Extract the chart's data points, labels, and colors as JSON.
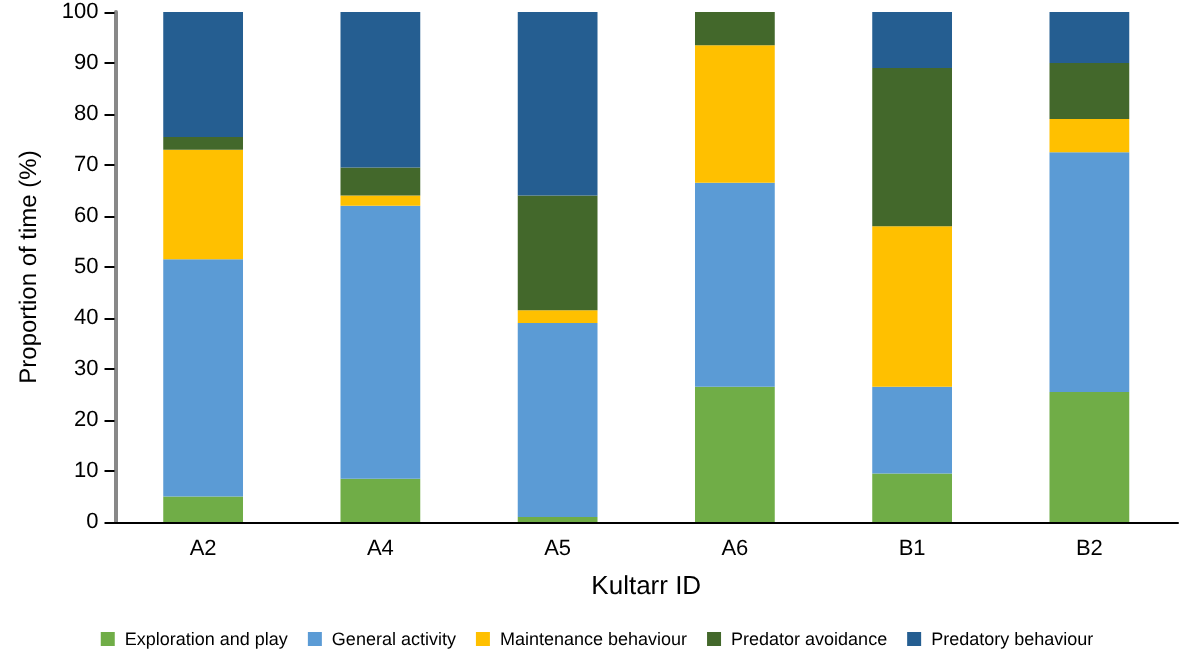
{
  "chart_data": {
    "type": "bar",
    "stacked": true,
    "xlabel": "Kultarr ID",
    "ylabel": "Proportion of time (%)",
    "categories": [
      "A2",
      "A4",
      "A5",
      "A6",
      "B1",
      "B2"
    ],
    "series": [
      {
        "name": "Exploration and play",
        "color": "#70ad47",
        "values": [
          5,
          8.5,
          1,
          26.5,
          9.5,
          25.5
        ]
      },
      {
        "name": "General activity",
        "color": "#5b9bd5",
        "values": [
          46.5,
          53.5,
          38,
          40,
          17,
          47
        ]
      },
      {
        "name": "Maintenance behaviour",
        "color": "#ffc000",
        "values": [
          21.5,
          2,
          2.5,
          27,
          31.5,
          6.5
        ]
      },
      {
        "name": "Predator avoidance",
        "color": "#43682b",
        "values": [
          2.5,
          5.5,
          22.5,
          6.5,
          31,
          11
        ]
      },
      {
        "name": "Predatory behaviour",
        "color": "#255e91",
        "values": [
          24.5,
          30.5,
          36,
          0,
          11,
          10
        ]
      }
    ],
    "ylim": [
      0,
      100
    ],
    "yticks": [
      0,
      10,
      20,
      30,
      40,
      50,
      60,
      70,
      80,
      90,
      100
    ],
    "grid": false,
    "legend": "bottom"
  }
}
